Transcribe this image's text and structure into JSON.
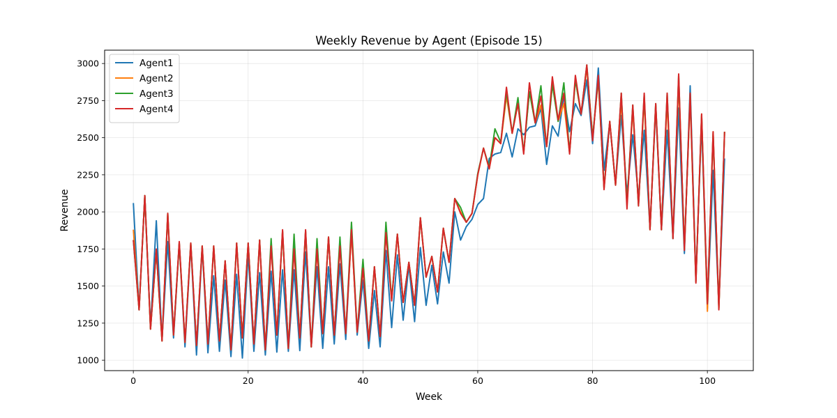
{
  "chart_data": {
    "type": "line",
    "title": "Weekly Revenue by Agent (Episode 15)",
    "xlabel": "Week",
    "ylabel": "Revenue",
    "xlim": [
      -5,
      108
    ],
    "ylim": [
      930,
      3090
    ],
    "xticks": [
      0,
      20,
      40,
      60,
      80,
      100
    ],
    "yticks": [
      1000,
      1250,
      1500,
      1750,
      2000,
      2250,
      2500,
      2750,
      3000
    ],
    "grid": true,
    "legend_position": "top-left",
    "x_start": 0,
    "series": [
      {
        "name": "Agent1",
        "color": "#1f77b4",
        "values": [
          2060,
          1340,
          2110,
          1220,
          1940,
          1140,
          1800,
          1150,
          1790,
          1090,
          1780,
          1035,
          1760,
          1050,
          1570,
          1060,
          1540,
          1025,
          1580,
          1015,
          1720,
          1060,
          1590,
          1035,
          1600,
          1055,
          1610,
          1060,
          1610,
          1065,
          1730,
          1090,
          1630,
          1080,
          1630,
          1110,
          1650,
          1140,
          1880,
          1170,
          1540,
          1080,
          1470,
          1090,
          1740,
          1220,
          1710,
          1270,
          1640,
          1260,
          1760,
          1370,
          1640,
          1380,
          1730,
          1520,
          2000,
          1810,
          1900,
          1950,
          2050,
          2090,
          2360,
          2390,
          2400,
          2530,
          2370,
          2560,
          2520,
          2570,
          2580,
          2700,
          2320,
          2580,
          2510,
          2780,
          2540,
          2730,
          2650,
          2890,
          2460,
          2970,
          2280,
          2600,
          2190,
          2650,
          2120,
          2520,
          2100,
          2550,
          1890,
          2700,
          1880,
          2550,
          1820,
          2700,
          1720,
          2850,
          1550,
          2600,
          1350,
          2280,
          1370,
          2360
        ]
      },
      {
        "name": "Agent2",
        "color": "#ff7f0e",
        "values": [
          1880,
          1340,
          2110,
          1210,
          1740,
          1130,
          1990,
          1170,
          1790,
          1120,
          1790,
          1100,
          1770,
          1110,
          1770,
          1130,
          1670,
          1070,
          1790,
          1150,
          1790,
          1110,
          1810,
          1070,
          1770,
          1170,
          1870,
          1080,
          1750,
          1150,
          1870,
          1090,
          1750,
          1180,
          1830,
          1170,
          1770,
          1180,
          1860,
          1190,
          1620,
          1130,
          1630,
          1160,
          1860,
          1410,
          1850,
          1390,
          1660,
          1370,
          1960,
          1560,
          1700,
          1460,
          1890,
          1660,
          2090,
          2000,
          1930,
          1990,
          2250,
          2430,
          2290,
          2500,
          2460,
          2780,
          2530,
          2730,
          2400,
          2810,
          2600,
          2720,
          2440,
          2860,
          2610,
          2730,
          2400,
          2890,
          2660,
          2970,
          2500,
          2890,
          2160,
          2610,
          2180,
          2750,
          2050,
          2690,
          2050,
          2760,
          1880,
          2720,
          1880,
          2750,
          1830,
          2880,
          1760,
          2770,
          1530,
          2660,
          1330,
          2540,
          1350,
          2540
        ]
      },
      {
        "name": "Agent3",
        "color": "#2ca02c",
        "values": [
          1810,
          1340,
          2110,
          1210,
          1740,
          1130,
          1990,
          1170,
          1790,
          1120,
          1790,
          1100,
          1770,
          1110,
          1770,
          1130,
          1670,
          1070,
          1790,
          1150,
          1790,
          1110,
          1810,
          1070,
          1820,
          1170,
          1870,
          1080,
          1850,
          1150,
          1870,
          1090,
          1820,
          1180,
          1830,
          1170,
          1830,
          1180,
          1930,
          1190,
          1680,
          1130,
          1630,
          1160,
          1930,
          1410,
          1850,
          1390,
          1660,
          1370,
          1960,
          1560,
          1700,
          1460,
          1890,
          1660,
          2090,
          2030,
          1930,
          1990,
          2260,
          2430,
          2300,
          2560,
          2470,
          2810,
          2530,
          2770,
          2400,
          2810,
          2600,
          2850,
          2440,
          2860,
          2610,
          2870,
          2400,
          2890,
          2660,
          2990,
          2500,
          2900,
          2160,
          2610,
          2180,
          2800,
          2050,
          2720,
          2040,
          2790,
          1880,
          2730,
          1880,
          2800,
          1820,
          2920,
          1750,
          2800,
          1530,
          2650,
          1380,
          2530,
          1350,
          2540
        ]
      },
      {
        "name": "Agent4",
        "color": "#d62728",
        "values": [
          1810,
          1340,
          2110,
          1210,
          1750,
          1130,
          1990,
          1170,
          1800,
          1120,
          1790,
          1100,
          1770,
          1110,
          1770,
          1130,
          1670,
          1070,
          1790,
          1150,
          1790,
          1110,
          1810,
          1070,
          1770,
          1170,
          1880,
          1080,
          1750,
          1150,
          1880,
          1090,
          1750,
          1180,
          1830,
          1170,
          1770,
          1180,
          1880,
          1190,
          1620,
          1130,
          1630,
          1160,
          1860,
          1400,
          1850,
          1390,
          1660,
          1370,
          1960,
          1560,
          1700,
          1460,
          1890,
          1660,
          2090,
          1990,
          1930,
          1990,
          2250,
          2430,
          2290,
          2500,
          2460,
          2840,
          2530,
          2730,
          2390,
          2870,
          2600,
          2780,
          2440,
          2910,
          2620,
          2800,
          2390,
          2920,
          2660,
          2990,
          2480,
          2920,
          2150,
          2610,
          2180,
          2800,
          2020,
          2720,
          2040,
          2800,
          1880,
          2730,
          1880,
          2800,
          1820,
          2930,
          1740,
          2800,
          1520,
          2660,
          1380,
          2540,
          1340,
          2540
        ]
      }
    ]
  }
}
